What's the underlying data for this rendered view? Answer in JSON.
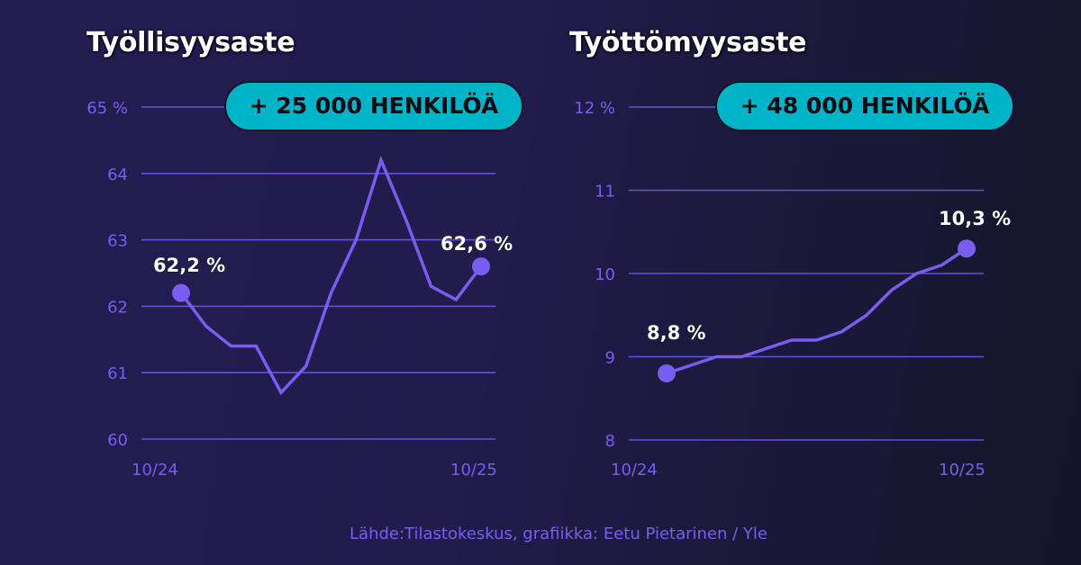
{
  "colors": {
    "background_start": "#231d52",
    "background_end": "#141528",
    "line": "#7b5cf0",
    "gridline": "#6a4fd8",
    "axis_text": "#7b5cf0",
    "badge": "#00b4c8",
    "badge_text": "#0b0b14",
    "title": "#ffffff"
  },
  "left": {
    "title": "Työllisyysaste",
    "badge": "+ 25 000 HENKILÖÄ",
    "yticks": [
      "65 %",
      "64",
      "63",
      "62",
      "61",
      "60"
    ],
    "xticks": [
      "10/24",
      "10/25"
    ],
    "start_label": "62,2 %",
    "end_label": "62,6 %"
  },
  "right": {
    "title": "Työttömyysaste",
    "badge": "+ 48 000 HENKILÖÄ",
    "yticks": [
      "12 %",
      "11",
      "10",
      "9",
      "8"
    ],
    "xticks": [
      "10/24",
      "10/25"
    ],
    "start_label": "8,8 %",
    "end_label": "10,3 %"
  },
  "source": "Lähde:Tilastokeskus, grafiikka: Eetu Pietarinen / Yle",
  "chart_data": [
    {
      "type": "line",
      "title": "Työllisyysaste",
      "annotation": "+ 25 000 HENKILÖÄ",
      "xlabel": "",
      "ylabel": "%",
      "x": [
        "10/24",
        "11/24",
        "12/24",
        "1/25",
        "2/25",
        "3/25",
        "4/25",
        "5/25",
        "6/25",
        "7/25",
        "8/25",
        "9/25",
        "10/25"
      ],
      "tick_labels_x": [
        "10/24",
        "10/25"
      ],
      "tick_labels_y": [
        "60",
        "61",
        "62",
        "63",
        "64",
        "65 %"
      ],
      "values": [
        62.2,
        61.7,
        61.4,
        61.4,
        60.7,
        61.1,
        62.2,
        63.0,
        64.2,
        63.3,
        62.3,
        62.1,
        62.6
      ],
      "point_labels": {
        "first": "62,2 %",
        "last": "62,6 %"
      },
      "ylim": [
        60,
        65
      ],
      "grid": true
    },
    {
      "type": "line",
      "title": "Työttömyysaste",
      "annotation": "+ 48 000 HENKILÖÄ",
      "xlabel": "",
      "ylabel": "%",
      "x": [
        "10/24",
        "11/24",
        "12/24",
        "1/25",
        "2/25",
        "3/25",
        "4/25",
        "5/25",
        "6/25",
        "7/25",
        "8/25",
        "9/25",
        "10/25"
      ],
      "tick_labels_x": [
        "10/24",
        "10/25"
      ],
      "tick_labels_y": [
        "8",
        "9",
        "10",
        "11",
        "12 %"
      ],
      "values": [
        8.8,
        8.9,
        9.0,
        9.0,
        9.1,
        9.2,
        9.2,
        9.3,
        9.5,
        9.8,
        10.0,
        10.1,
        10.3
      ],
      "point_labels": {
        "first": "8,8 %",
        "last": "10,3 %"
      },
      "ylim": [
        8,
        12
      ],
      "grid": true
    }
  ]
}
